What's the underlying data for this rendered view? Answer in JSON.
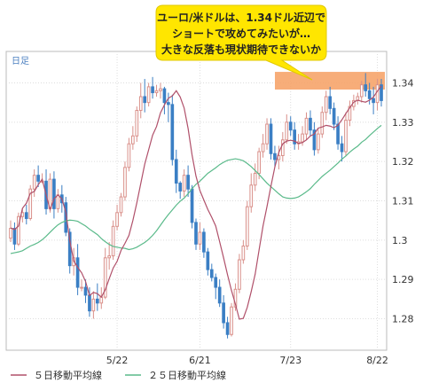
{
  "callout": {
    "lines": [
      "ユーロ/米ドルは、1.34ドル近辺で",
      "ショートで攻めてみたいが…",
      "大きな反落も現状期待できないか"
    ],
    "bg_color": "#ffe600"
  },
  "period_label": "日足",
  "legend": {
    "ma5_label": "５日移動平均線",
    "ma25_label": "２５日移動平均線"
  },
  "colors": {
    "up_candle": "#d9908a",
    "down_candle": "#3b7fc4",
    "ma5": "#b0506a",
    "ma25": "#5aba8a",
    "highlight": "#f6a46a",
    "grid": "#dddddd"
  },
  "chart_data": {
    "type": "candlestick",
    "title": "",
    "xlabel": "",
    "ylabel": "",
    "ylim": [
      1.272,
      1.348
    ],
    "y_ticks": [
      "1.28",
      "1.29",
      "1.3",
      "1.31",
      "1.32",
      "1.33",
      "1.34"
    ],
    "x_ticks": [
      {
        "label": "5/22",
        "index": 27
      },
      {
        "label": "6/21",
        "index": 48
      },
      {
        "label": "7/23",
        "index": 71
      },
      {
        "label": "8/22",
        "index": 93
      }
    ],
    "highlight_band": [
      1.3383,
      1.3428
    ],
    "series": [
      {
        "name": "５日移動平均線",
        "values": [
          1.3031,
          1.3027,
          1.3036,
          1.3081,
          1.3094,
          1.3119,
          1.3124,
          1.3141,
          1.3155,
          1.3115,
          1.3078,
          1.3105,
          1.3115,
          1.3105,
          1.3071,
          1.2999,
          1.2947,
          1.2931,
          1.2917,
          1.2895,
          1.2859,
          1.2867,
          1.2864,
          1.2855,
          1.2874,
          1.2902,
          1.2929,
          1.2946,
          1.2974,
          1.2992,
          1.3012,
          1.305,
          1.3095,
          1.3144,
          1.3193,
          1.323,
          1.3267,
          1.3289,
          1.3324,
          1.3344,
          1.3361,
          1.3367,
          1.338,
          1.3364,
          1.3336,
          1.3284,
          1.3217,
          1.3163,
          1.3126,
          1.3102,
          1.3078,
          1.3058,
          1.3036,
          1.2996,
          1.2955,
          1.2912,
          1.2872,
          1.2837,
          1.2799,
          1.2801,
          1.2829,
          1.2869,
          1.2913,
          1.2975,
          1.3036,
          1.3085,
          1.3137,
          1.3186,
          1.3223,
          1.3245,
          1.3252,
          1.3254,
          1.3252,
          1.3246,
          1.3248,
          1.3255,
          1.3265,
          1.327,
          1.3285,
          1.3288,
          1.3292,
          1.329,
          1.3286,
          1.3292,
          1.3306,
          1.3322,
          1.3337,
          1.3351,
          1.3356,
          1.3353,
          1.3351,
          1.3356,
          1.3364,
          1.3379,
          1.3392
        ]
      },
      {
        "name": "２５日移動平均線",
        "values": [
          1.2966,
          1.2968,
          1.297,
          1.2973,
          1.2979,
          1.2985,
          1.2989,
          1.2994,
          1.3001,
          1.301,
          1.302,
          1.303,
          1.3039,
          1.3045,
          1.3049,
          1.3051,
          1.305,
          1.3048,
          1.3042,
          1.3036,
          1.3028,
          1.3021,
          1.3014,
          1.3004,
          1.2996,
          1.2989,
          1.2984,
          1.2982,
          1.298,
          1.2979,
          1.2976,
          1.2978,
          1.2982,
          1.2988,
          1.2994,
          1.3002,
          1.3012,
          1.3024,
          1.3038,
          1.3052,
          1.3065,
          1.3077,
          1.3089,
          1.3099,
          1.3107,
          1.3118,
          1.3131,
          1.3142,
          1.315,
          1.316,
          1.317,
          1.3177,
          1.3184,
          1.3192,
          1.3198,
          1.3203,
          1.3205,
          1.3207,
          1.3205,
          1.3202,
          1.3195,
          1.3187,
          1.3177,
          1.3167,
          1.3156,
          1.3145,
          1.3136,
          1.3127,
          1.3118,
          1.311,
          1.3107,
          1.3106,
          1.3107,
          1.311,
          1.3116,
          1.3123,
          1.3131,
          1.3142,
          1.3152,
          1.3162,
          1.317,
          1.3178,
          1.3187,
          1.3196,
          1.3206,
          1.3214,
          1.3224,
          1.3232,
          1.3239,
          1.3249,
          1.3256,
          1.3266,
          1.3275,
          1.3284,
          1.3292
        ]
      },
      {
        "name": "candles",
        "values": [
          [
            1.3005,
            1.303,
            1.2995,
            1.305
          ],
          [
            1.303,
            1.299,
            1.2975,
            1.3045
          ],
          [
            1.299,
            1.306,
            1.2985,
            1.307
          ],
          [
            1.306,
            1.307,
            1.3045,
            1.308
          ],
          [
            1.307,
            1.3055,
            1.304,
            1.309
          ],
          [
            1.3055,
            1.313,
            1.305,
            1.314
          ],
          [
            1.313,
            1.3165,
            1.311,
            1.318
          ],
          [
            1.3165,
            1.315,
            1.3135,
            1.319
          ],
          [
            1.315,
            1.315,
            1.3145,
            1.317
          ],
          [
            1.315,
            1.308,
            1.3065,
            1.318
          ],
          [
            1.308,
            1.3155,
            1.307,
            1.317
          ],
          [
            1.3155,
            1.308,
            1.3055,
            1.3175
          ],
          [
            1.308,
            1.3115,
            1.307,
            1.313
          ],
          [
            1.3115,
            1.3095,
            1.307,
            1.314
          ],
          [
            1.3095,
            1.302,
            1.301,
            1.311
          ],
          [
            1.302,
            1.2935,
            1.2915,
            1.303
          ],
          [
            1.2935,
            1.2955,
            1.291,
            1.298
          ],
          [
            1.2955,
            1.288,
            1.286,
            1.299
          ],
          [
            1.288,
            1.288,
            1.287,
            1.29
          ],
          [
            1.288,
            1.286,
            1.284,
            1.29
          ],
          [
            1.286,
            1.282,
            1.2805,
            1.288
          ],
          [
            1.282,
            1.285,
            1.28,
            1.287
          ],
          [
            1.285,
            1.284,
            1.282,
            1.289
          ],
          [
            1.284,
            1.2855,
            1.2825,
            1.288
          ],
          [
            1.2855,
            1.2955,
            1.285,
            1.298
          ],
          [
            1.2955,
            1.296,
            1.2925,
            1.2995
          ],
          [
            1.296,
            1.3035,
            1.295,
            1.305
          ],
          [
            1.3035,
            1.307,
            1.3025,
            1.309
          ],
          [
            1.307,
            1.311,
            1.306,
            1.312
          ],
          [
            1.311,
            1.3185,
            1.31,
            1.32
          ],
          [
            1.3185,
            1.3245,
            1.3175,
            1.326
          ],
          [
            1.3245,
            1.3265,
            1.323,
            1.329
          ],
          [
            1.3265,
            1.333,
            1.325,
            1.334
          ],
          [
            1.333,
            1.3365,
            1.331,
            1.34
          ],
          [
            1.3365,
            1.335,
            1.3325,
            1.341
          ],
          [
            1.335,
            1.339,
            1.334,
            1.34
          ],
          [
            1.339,
            1.3375,
            1.336,
            1.3415
          ],
          [
            1.3375,
            1.338,
            1.3365,
            1.3395
          ],
          [
            1.338,
            1.3385,
            1.336,
            1.34
          ],
          [
            1.3385,
            1.335,
            1.332,
            1.339
          ],
          [
            1.335,
            1.3345,
            1.33,
            1.3375
          ],
          [
            1.3345,
            1.3205,
            1.319,
            1.337
          ],
          [
            1.3205,
            1.3145,
            1.312,
            1.323
          ],
          [
            1.3145,
            1.3125,
            1.3105,
            1.315
          ],
          [
            1.3125,
            1.3165,
            1.311,
            1.318
          ],
          [
            1.3165,
            1.313,
            1.311,
            1.319
          ],
          [
            1.313,
            1.3045,
            1.303,
            1.314
          ],
          [
            1.3045,
            1.299,
            1.2975,
            1.3055
          ],
          [
            1.299,
            1.302,
            1.2975,
            1.3045
          ],
          [
            1.302,
            1.297,
            1.2955,
            1.303
          ],
          [
            1.297,
            1.2925,
            1.291,
            1.298
          ],
          [
            1.2925,
            1.2905,
            1.2895,
            1.294
          ],
          [
            1.2905,
            1.288,
            1.285,
            1.2915
          ],
          [
            1.288,
            1.284,
            1.283,
            1.29
          ],
          [
            1.284,
            1.279,
            1.2775,
            1.286
          ],
          [
            1.279,
            1.276,
            1.275,
            1.2805
          ],
          [
            1.276,
            1.283,
            1.2755,
            1.284
          ],
          [
            1.283,
            1.2875,
            1.282,
            1.289
          ],
          [
            1.2875,
            1.295,
            1.2865,
            1.2965
          ],
          [
            1.295,
            1.2985,
            1.294,
            1.3
          ],
          [
            1.2985,
            1.3085,
            1.2975,
            1.31
          ],
          [
            1.3085,
            1.314,
            1.307,
            1.317
          ],
          [
            1.314,
            1.317,
            1.3125,
            1.3195
          ],
          [
            1.317,
            1.3225,
            1.3155,
            1.3235
          ],
          [
            1.3225,
            1.3245,
            1.321,
            1.327
          ],
          [
            1.3245,
            1.3295,
            1.323,
            1.331
          ],
          [
            1.3295,
            1.322,
            1.3205,
            1.331
          ],
          [
            1.322,
            1.3205,
            1.3185,
            1.324
          ],
          [
            1.3205,
            1.3215,
            1.318,
            1.324
          ],
          [
            1.3215,
            1.3255,
            1.32,
            1.3275
          ],
          [
            1.3255,
            1.33,
            1.3245,
            1.332
          ],
          [
            1.33,
            1.328,
            1.3265,
            1.3315
          ],
          [
            1.328,
            1.3245,
            1.323,
            1.33
          ],
          [
            1.3245,
            1.325,
            1.323,
            1.327
          ],
          [
            1.325,
            1.327,
            1.324,
            1.329
          ],
          [
            1.327,
            1.331,
            1.3255,
            1.3325
          ],
          [
            1.331,
            1.328,
            1.3265,
            1.333
          ],
          [
            1.328,
            1.323,
            1.3215,
            1.33
          ],
          [
            1.323,
            1.327,
            1.322,
            1.3285
          ],
          [
            1.327,
            1.3325,
            1.326,
            1.334
          ],
          [
            1.3325,
            1.3365,
            1.3305,
            1.338
          ],
          [
            1.3365,
            1.3335,
            1.332,
            1.339
          ],
          [
            1.3335,
            1.3295,
            1.328,
            1.335
          ],
          [
            1.3295,
            1.3245,
            1.323,
            1.3315
          ],
          [
            1.3245,
            1.3225,
            1.32,
            1.3265
          ],
          [
            1.3225,
            1.3305,
            1.3215,
            1.3325
          ],
          [
            1.3305,
            1.334,
            1.329,
            1.3355
          ],
          [
            1.334,
            1.3355,
            1.333,
            1.337
          ],
          [
            1.3355,
            1.3365,
            1.3345,
            1.3375
          ],
          [
            1.3365,
            1.3395,
            1.335,
            1.3405
          ],
          [
            1.3395,
            1.338,
            1.3365,
            1.3425
          ],
          [
            1.338,
            1.336,
            1.3345,
            1.34
          ],
          [
            1.336,
            1.335,
            1.332,
            1.339
          ],
          [
            1.335,
            1.3395,
            1.333,
            1.341
          ],
          [
            1.3395,
            1.3355,
            1.334,
            1.341
          ]
        ]
      }
    ]
  }
}
